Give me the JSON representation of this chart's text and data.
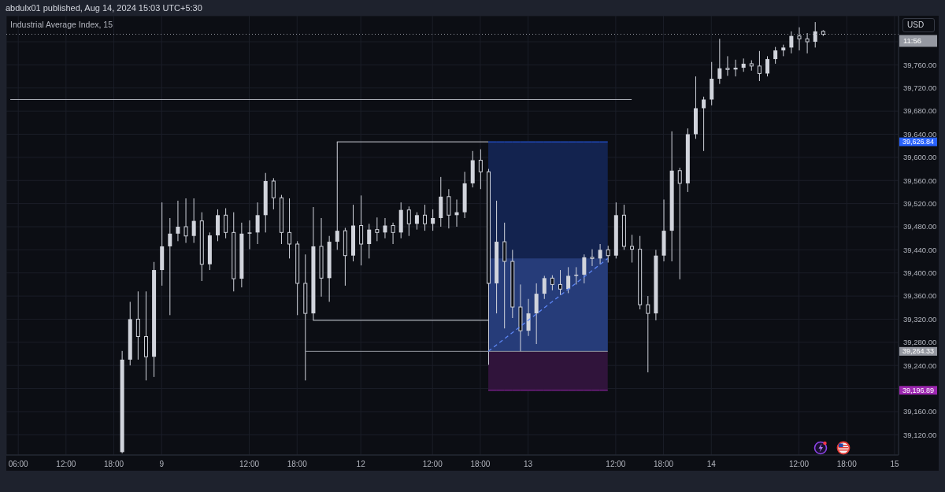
{
  "chart_data": {
    "type": "candlestick",
    "title": "Industrial Average Index, 15",
    "ylabel": "USD",
    "annotations": [
      "abdulx01 published, Aug 14, 2024 15:03 UTC+5:30",
      "11:56"
    ],
    "categories": [
      null,
      "06:00",
      null,
      null,
      null,
      null,
      null,
      "12:00",
      null,
      null,
      null,
      null,
      null,
      "18:00",
      null,
      null,
      null,
      null,
      null,
      "9",
      null,
      null,
      null,
      null,
      null,
      null,
      null,
      null,
      null,
      null,
      "12:00",
      null,
      null,
      null,
      null,
      null,
      "18:00",
      null,
      null,
      null,
      null,
      null,
      null,
      null,
      "12",
      null,
      null,
      null,
      null,
      null,
      null,
      null,
      null,
      "12:00",
      null,
      null,
      null,
      null,
      null,
      "18:00",
      null,
      null,
      null,
      null,
      null,
      "13",
      null,
      null,
      null,
      null,
      null,
      null,
      null,
      null,
      null,
      null,
      "12:00",
      null,
      null,
      null,
      null,
      null,
      "18:00",
      null,
      null,
      null,
      null,
      null,
      "14",
      null,
      null,
      null,
      null,
      null,
      null,
      null,
      null,
      null,
      null,
      "12:00",
      null,
      null,
      null,
      null,
      null,
      "18:00",
      null,
      null,
      null,
      null,
      null,
      "15"
    ],
    "color": "#d1d4dc",
    "ohlc": [
      null,
      null,
      null,
      null,
      null,
      null,
      null,
      null,
      null,
      null,
      null,
      null,
      null,
      null,
      [
        39090,
        39265,
        39088,
        39250
      ],
      [
        39250,
        39350,
        39240,
        39320
      ],
      [
        39320,
        39368,
        39250,
        39290
      ],
      [
        39290,
        39368,
        39214,
        39255
      ],
      [
        39255,
        39419,
        39220,
        39405
      ],
      [
        39405,
        39522,
        39378,
        39446
      ],
      [
        39446,
        39495,
        39327,
        39468
      ],
      [
        39468,
        39525,
        39455,
        39480
      ],
      [
        39480,
        39529,
        39452,
        39464
      ],
      [
        39464,
        39529,
        39452,
        39490
      ],
      [
        39490,
        39505,
        39386,
        39415
      ],
      [
        39415,
        39470,
        39405,
        39465
      ],
      [
        39465,
        39510,
        39455,
        39500
      ],
      [
        39500,
        39512,
        39460,
        39470
      ],
      [
        39470,
        39505,
        39368,
        39390
      ],
      [
        39390,
        39487,
        39375,
        39468
      ],
      [
        39468,
        39491,
        39441,
        39470
      ],
      [
        39470,
        39522,
        39450,
        39500
      ],
      [
        39500,
        39573,
        39470,
        39559
      ],
      [
        39559,
        39564,
        39510,
        39530
      ],
      [
        39530,
        39535,
        39450,
        39470
      ],
      [
        39470,
        39529,
        39425,
        39450
      ],
      [
        39450,
        39455,
        39327,
        39382
      ],
      [
        39382,
        39432,
        39214,
        39330
      ],
      [
        39330,
        39514,
        39318,
        39446
      ],
      [
        39446,
        39495,
        39359,
        39391
      ],
      [
        39391,
        39464,
        39350,
        39454
      ],
      [
        39454,
        39627,
        39440,
        39473
      ],
      [
        39473,
        39478,
        39378,
        39430
      ],
      [
        39430,
        39518,
        39420,
        39482
      ],
      [
        39482,
        39534,
        39413,
        39450
      ],
      [
        39450,
        39485,
        39425,
        39475
      ],
      [
        39475,
        39496,
        39455,
        39470
      ],
      [
        39470,
        39495,
        39460,
        39482
      ],
      [
        39482,
        39487,
        39450,
        39470
      ],
      [
        39470,
        39522,
        39460,
        39509
      ],
      [
        39509,
        39515,
        39464,
        39485
      ],
      [
        39485,
        39505,
        39475,
        39500
      ],
      [
        39500,
        39518,
        39473,
        39485
      ],
      [
        39485,
        39510,
        39473,
        39495
      ],
      [
        39495,
        39566,
        39480,
        39532
      ],
      [
        39532,
        39545,
        39477,
        39500
      ],
      [
        39500,
        39527,
        39480,
        39505
      ],
      [
        39505,
        39575,
        39495,
        39555
      ],
      [
        39555,
        39611,
        39548,
        39595
      ],
      [
        39595,
        39614,
        39545,
        39575
      ],
      [
        39575,
        39580,
        39241,
        39382
      ],
      [
        39382,
        39525,
        39330,
        39454
      ],
      [
        39454,
        39487,
        39304,
        39420
      ],
      [
        39420,
        39440,
        39322,
        39341
      ],
      [
        39341,
        39380,
        39264,
        39300
      ],
      [
        39300,
        39355,
        39291,
        39330
      ],
      [
        39330,
        39382,
        39277,
        39364
      ],
      [
        39364,
        39395,
        39355,
        39391
      ],
      [
        39391,
        39396,
        39370,
        39380
      ],
      [
        39380,
        39405,
        39362,
        39372
      ],
      [
        39372,
        39410,
        39365,
        39395
      ],
      [
        39395,
        39410,
        39380,
        39397
      ],
      [
        39397,
        39432,
        39382,
        39427
      ],
      [
        39427,
        39441,
        39412,
        39425
      ],
      [
        39425,
        39450,
        39415,
        39440
      ],
      [
        39440,
        39447,
        39418,
        39430
      ],
      [
        39430,
        39522,
        39425,
        39500
      ],
      [
        39500,
        39518,
        39440,
        39446
      ],
      [
        39446,
        39466,
        39418,
        39441
      ],
      [
        39441,
        39464,
        39337,
        39345
      ],
      [
        39345,
        39360,
        39228,
        39330
      ],
      [
        39330,
        39440,
        39318,
        39430
      ],
      [
        39430,
        39527,
        39420,
        39473
      ],
      [
        39473,
        39645,
        39420,
        39577
      ],
      [
        39577,
        39582,
        39389,
        39555
      ],
      [
        39555,
        39650,
        39540,
        39640
      ],
      [
        39640,
        39740,
        39632,
        39685
      ],
      [
        39685,
        39705,
        39611,
        39700
      ],
      [
        39700,
        39765,
        39690,
        39736
      ],
      [
        39736,
        39805,
        39727,
        39754
      ],
      [
        39754,
        39775,
        39741,
        39752
      ],
      [
        39752,
        39769,
        39740,
        39755
      ],
      [
        39755,
        39771,
        39748,
        39762
      ],
      [
        39762,
        39768,
        39750,
        39758
      ],
      [
        39758,
        39784,
        39732,
        39745
      ],
      [
        39745,
        39775,
        39740,
        39770
      ],
      [
        39770,
        39791,
        39762,
        39785
      ],
      [
        39785,
        39795,
        39775,
        39790
      ],
      [
        39790,
        39818,
        39780,
        39810
      ],
      [
        39810,
        39825,
        39785,
        39805
      ],
      [
        39805,
        39815,
        39780,
        39800
      ],
      [
        39800,
        39834,
        39790,
        39818
      ],
      [
        39818,
        39820,
        39810,
        39813
      ],
      null,
      null,
      null,
      null,
      null,
      null,
      null,
      null,
      null
    ],
    "series": [
      {
        "name": "39,626.84",
        "type": "line",
        "color": "#2962ff",
        "values": [
          null,
          null,
          null,
          null,
          null,
          null,
          null,
          null,
          null,
          null,
          null,
          null,
          null,
          null,
          null,
          null,
          null,
          null,
          null,
          null,
          null,
          null,
          null,
          null,
          null,
          null,
          null,
          null,
          null,
          null,
          null,
          null,
          null,
          null,
          null,
          null,
          null,
          null,
          null,
          null,
          null,
          null,
          null,
          null,
          null,
          null,
          null,
          null,
          null,
          null,
          null,
          null,
          null,
          null,
          null,
          null,
          null,
          null,
          null,
          null,
          39626.84,
          39626.84,
          39626.84,
          39626.84,
          39626.84,
          39626.84,
          39626.84,
          39626.84,
          39626.84,
          39626.84,
          39626.84,
          39626.84,
          39626.84,
          39626.84,
          39626.84,
          39626.84,
          null,
          null,
          null,
          null,
          null,
          null,
          null,
          null,
          null,
          null,
          null,
          null,
          null,
          null,
          null,
          null,
          null,
          null,
          null,
          null,
          null,
          null,
          null,
          null,
          null,
          null,
          null,
          null,
          null,
          null,
          null,
          null,
          null,
          null,
          null,
          null
        ],
        "lower": [
          null,
          null,
          null,
          null,
          null,
          null,
          null,
          null,
          null,
          null,
          null,
          null,
          null,
          null,
          null,
          null,
          null,
          null,
          null,
          null,
          null,
          null,
          null,
          null,
          null,
          null,
          null,
          null,
          null,
          null,
          null,
          null,
          null,
          null,
          null,
          null,
          null,
          null,
          null,
          null,
          null,
          null,
          null,
          null,
          null,
          null,
          null,
          null,
          null,
          null,
          null,
          null,
          null,
          null,
          null,
          null,
          null,
          null,
          null,
          null,
          39264.33,
          39264.33,
          39264.33,
          39264.33,
          39264.33,
          39264.33,
          39264.33,
          39264.33,
          39264.33,
          39264.33,
          39264.33,
          39264.33,
          39264.33,
          39264.33,
          39264.33,
          39264.33,
          null,
          null,
          null,
          null,
          null,
          null,
          null,
          null,
          null,
          null,
          null,
          null,
          null,
          null,
          null,
          null,
          null,
          null,
          null,
          null,
          null,
          null,
          null,
          null,
          null,
          null,
          null,
          null,
          null,
          null,
          null,
          null,
          null,
          null,
          null,
          null
        ],
        "upper": [
          null,
          null,
          null,
          null,
          null,
          null,
          null,
          null,
          null,
          null,
          null,
          null,
          null,
          null,
          null,
          null,
          null,
          null,
          null,
          null,
          null,
          null,
          null,
          null,
          null,
          null,
          null,
          null,
          null,
          null,
          null,
          null,
          null,
          null,
          null,
          null,
          null,
          null,
          null,
          null,
          null,
          null,
          null,
          null,
          null,
          null,
          null,
          null,
          null,
          null,
          null,
          null,
          null,
          null,
          null,
          null,
          null,
          null,
          null,
          null,
          39626.84,
          39626.84,
          39626.84,
          39626.84,
          39626.84,
          39626.84,
          39626.84,
          39626.84,
          39626.84,
          39626.84,
          39626.84,
          39626.84,
          39626.84,
          39626.84,
          39626.84,
          39626.84,
          null,
          null,
          null,
          null,
          null,
          null,
          null,
          null,
          null,
          null,
          null,
          null,
          null,
          null,
          null,
          null,
          null,
          null,
          null,
          null,
          null,
          null,
          null,
          null,
          null,
          null,
          null,
          null,
          null,
          null,
          null,
          null,
          null,
          null,
          null,
          null
        ]
      },
      {
        "name": "39,264.33",
        "type": "line",
        "color": "#9598a1",
        "values": [
          null,
          null,
          null,
          null,
          null,
          null,
          null,
          null,
          null,
          null,
          null,
          null,
          null,
          null,
          null,
          null,
          null,
          null,
          null,
          null,
          null,
          null,
          null,
          null,
          null,
          null,
          null,
          null,
          null,
          null,
          null,
          null,
          null,
          null,
          null,
          null,
          null,
          39264.33,
          null,
          null,
          null,
          null,
          null,
          null,
          null,
          null,
          null,
          null,
          null,
          null,
          null,
          null,
          null,
          null,
          null,
          null,
          null,
          null,
          null,
          null,
          null,
          null,
          null,
          null,
          null,
          null,
          null,
          null,
          null,
          null,
          null,
          null,
          null,
          null,
          null,
          39264.33,
          null,
          null,
          null,
          null,
          null,
          null,
          null,
          null,
          null,
          null,
          null,
          null,
          null,
          null,
          null,
          null,
          null,
          null,
          null,
          null,
          null,
          null,
          null,
          null,
          null,
          null,
          null,
          null,
          null,
          null,
          null,
          null,
          null,
          null,
          null,
          null
        ]
      },
      {
        "name": "39,196.89",
        "type": "line",
        "color": "#9c27b0",
        "values": [
          null,
          null,
          null,
          null,
          null,
          null,
          null,
          null,
          null,
          null,
          null,
          null,
          null,
          null,
          null,
          null,
          null,
          null,
          null,
          null,
          null,
          null,
          null,
          null,
          null,
          null,
          null,
          null,
          null,
          null,
          null,
          null,
          null,
          null,
          null,
          null,
          null,
          null,
          null,
          null,
          null,
          null,
          null,
          null,
          null,
          null,
          null,
          null,
          null,
          null,
          null,
          null,
          null,
          null,
          null,
          null,
          null,
          null,
          null,
          null,
          39196.89,
          39196.89,
          39196.89,
          39196.89,
          39196.89,
          39196.89,
          39196.89,
          39196.89,
          39196.89,
          39196.89,
          39196.89,
          39196.89,
          39196.89,
          39196.89,
          39196.89,
          39196.89,
          null,
          null,
          null,
          null,
          null,
          null,
          null,
          null,
          null,
          null,
          null,
          null,
          null,
          null,
          null,
          null,
          null,
          null,
          null,
          null,
          null,
          null,
          null,
          null,
          null,
          null,
          null,
          null,
          null,
          null,
          null,
          null,
          null,
          null,
          null,
          null
        ],
        "lower": [
          null,
          null,
          null,
          null,
          null,
          null,
          null,
          null,
          null,
          null,
          null,
          null,
          null,
          null,
          null,
          null,
          null,
          null,
          null,
          null,
          null,
          null,
          null,
          null,
          null,
          null,
          null,
          null,
          null,
          null,
          null,
          null,
          null,
          null,
          null,
          null,
          null,
          null,
          null,
          null,
          null,
          null,
          null,
          null,
          null,
          null,
          null,
          null,
          null,
          null,
          null,
          null,
          null,
          null,
          null,
          null,
          null,
          null,
          null,
          null,
          39196.89,
          39196.89,
          39196.89,
          39196.89,
          39196.89,
          39196.89,
          39196.89,
          39196.89,
          39196.89,
          39196.89,
          39196.89,
          39196.89,
          39196.89,
          39196.89,
          39196.89,
          39196.89,
          null,
          null,
          null,
          null,
          null,
          null,
          null,
          null,
          null,
          null,
          null,
          null,
          null,
          null,
          null,
          null,
          null,
          null,
          null,
          null,
          null,
          null,
          null,
          null,
          null,
          null,
          null,
          null,
          null,
          null,
          null,
          null,
          null,
          null,
          null,
          null
        ],
        "upper": [
          null,
          null,
          null,
          null,
          null,
          null,
          null,
          null,
          null,
          null,
          null,
          null,
          null,
          null,
          null,
          null,
          null,
          null,
          null,
          null,
          null,
          null,
          null,
          null,
          null,
          null,
          null,
          null,
          null,
          null,
          null,
          null,
          null,
          null,
          null,
          null,
          null,
          null,
          null,
          null,
          null,
          null,
          null,
          null,
          null,
          null,
          null,
          null,
          null,
          null,
          null,
          null,
          null,
          null,
          null,
          null,
          null,
          null,
          null,
          null,
          39264.33,
          39264.33,
          39264.33,
          39264.33,
          39264.33,
          39264.33,
          39264.33,
          39264.33,
          39264.33,
          39264.33,
          39264.33,
          39264.33,
          39264.33,
          39264.33,
          39264.33,
          39264.33,
          null,
          null,
          null,
          null,
          null,
          null,
          null,
          null,
          null,
          null,
          null,
          null,
          null,
          null,
          null,
          null,
          null,
          null,
          null,
          null,
          null,
          null,
          null,
          null,
          null,
          null,
          null,
          null,
          null,
          null,
          null,
          null,
          null,
          null,
          null,
          null
        ]
      },
      {
        "type": "line",
        "color": "#d1d4dc",
        "values": [
          null,
          null,
          null,
          null,
          null,
          null,
          null,
          null,
          null,
          null,
          null,
          null,
          null,
          null,
          null,
          null,
          null,
          null,
          null,
          null,
          null,
          null,
          null,
          null,
          null,
          null,
          null,
          null,
          null,
          null,
          null,
          null,
          null,
          null,
          null,
          null,
          null,
          null,
          null,
          null,
          null,
          39626.84,
          null,
          null,
          null,
          null,
          null,
          null,
          null,
          null,
          null,
          null,
          null,
          null,
          null,
          null,
          null,
          null,
          null,
          null,
          39626.84,
          null,
          null,
          null,
          null,
          null,
          null,
          null,
          null,
          null,
          null,
          null,
          null,
          null,
          null,
          null,
          null,
          null,
          null,
          null,
          null,
          null,
          null,
          null,
          null,
          null,
          null,
          null,
          null,
          null,
          null,
          null,
          null,
          null,
          null,
          null,
          null,
          null,
          null,
          null,
          null,
          null,
          null,
          null,
          null,
          null,
          null,
          null,
          null,
          null,
          null,
          null
        ]
      },
      {
        "type": "line",
        "color": "#b2b5be",
        "values": [
          39700,
          null,
          null,
          null,
          null,
          null,
          null,
          null,
          null,
          null,
          null,
          null,
          null,
          null,
          null,
          null,
          null,
          null,
          null,
          null,
          null,
          null,
          null,
          null,
          null,
          null,
          null,
          null,
          null,
          null,
          null,
          null,
          null,
          null,
          null,
          null,
          null,
          null,
          null,
          null,
          null,
          null,
          null,
          null,
          null,
          null,
          null,
          null,
          null,
          null,
          null,
          null,
          null,
          null,
          null,
          null,
          null,
          null,
          null,
          null,
          null,
          null,
          null,
          null,
          null,
          null,
          null,
          null,
          null,
          null,
          null,
          null,
          null,
          null,
          null,
          null,
          null,
          null,
          39700,
          null,
          null,
          null,
          null,
          null,
          null,
          null,
          null,
          null,
          null,
          null,
          null,
          null,
          null,
          null,
          null,
          null,
          null,
          null,
          null,
          null,
          null,
          null,
          null,
          null,
          null,
          null,
          null,
          null,
          null,
          null,
          null,
          null
        ]
      },
      {
        "type": "line",
        "color": "#d1d4dc",
        "values": [
          null,
          null,
          null,
          null,
          null,
          null,
          null,
          null,
          null,
          null,
          null,
          null,
          null,
          null,
          null,
          null,
          null,
          null,
          null,
          null,
          null,
          null,
          null,
          null,
          null,
          null,
          null,
          null,
          null,
          null,
          null,
          null,
          null,
          null,
          null,
          null,
          null,
          null,
          39318,
          null,
          null,
          null,
          null,
          null,
          null,
          null,
          null,
          null,
          null,
          null,
          null,
          null,
          null,
          null,
          null,
          null,
          null,
          null,
          null,
          null,
          39318,
          null,
          null,
          null,
          null,
          null,
          null,
          null,
          null,
          null,
          null,
          null,
          null,
          null,
          null,
          null,
          null,
          null,
          null,
          null,
          null,
          null,
          null,
          null,
          null,
          null,
          null,
          null,
          null,
          null,
          null,
          null,
          null,
          null,
          null,
          null,
          null,
          null,
          null,
          null,
          null,
          null,
          null,
          null,
          null,
          null,
          null,
          null,
          null,
          null,
          null,
          null
        ]
      },
      {
        "type": "line",
        "color": "#5d86f5",
        "line_style": "dashed",
        "values": [
          null,
          null,
          null,
          null,
          null,
          null,
          null,
          null,
          null,
          null,
          null,
          null,
          null,
          null,
          null,
          null,
          null,
          null,
          null,
          null,
          null,
          null,
          null,
          null,
          null,
          null,
          null,
          null,
          null,
          null,
          null,
          null,
          null,
          null,
          null,
          null,
          null,
          null,
          null,
          null,
          null,
          null,
          null,
          null,
          null,
          null,
          null,
          null,
          null,
          null,
          null,
          null,
          null,
          null,
          null,
          null,
          null,
          null,
          null,
          null,
          39264.33,
          null,
          null,
          null,
          null,
          null,
          null,
          null,
          null,
          null,
          null,
          null,
          null,
          null,
          null,
          39425,
          null,
          null,
          null,
          null,
          null,
          null,
          null,
          null,
          null,
          null,
          null,
          null,
          null,
          null,
          null,
          null,
          null,
          null,
          null,
          null,
          null,
          null,
          null,
          null,
          null,
          null,
          null,
          null,
          null,
          null,
          null,
          null,
          null,
          null,
          null,
          null
        ],
        "lower": [
          null,
          null,
          null,
          null,
          null,
          null,
          null,
          null,
          null,
          null,
          null,
          null,
          null,
          null,
          null,
          null,
          null,
          null,
          null,
          null,
          null,
          null,
          null,
          null,
          null,
          null,
          null,
          null,
          null,
          null,
          null,
          null,
          null,
          null,
          null,
          null,
          null,
          null,
          null,
          null,
          null,
          null,
          null,
          null,
          null,
          null,
          null,
          null,
          null,
          null,
          null,
          null,
          null,
          null,
          null,
          null,
          null,
          null,
          null,
          null,
          39264.33,
          39264.33,
          39264.33,
          39264.33,
          39264.33,
          39264.33,
          39264.33,
          39264.33,
          39264.33,
          39264.33,
          39264.33,
          39264.33,
          39264.33,
          39264.33,
          39264.33,
          39264.33,
          null,
          null,
          null,
          null,
          null,
          null,
          null,
          null,
          null,
          null,
          null,
          null,
          null,
          null,
          null,
          null,
          null,
          null,
          null,
          null,
          null,
          null,
          null,
          null,
          null,
          null,
          null,
          null,
          null,
          null,
          null,
          null,
          null,
          null,
          null,
          null
        ],
        "upper": [
          null,
          null,
          null,
          null,
          null,
          null,
          null,
          null,
          null,
          null,
          null,
          null,
          null,
          null,
          null,
          null,
          null,
          null,
          null,
          null,
          null,
          null,
          null,
          null,
          null,
          null,
          null,
          null,
          null,
          null,
          null,
          null,
          null,
          null,
          null,
          null,
          null,
          null,
          null,
          null,
          null,
          null,
          null,
          null,
          null,
          null,
          null,
          null,
          null,
          null,
          null,
          null,
          null,
          null,
          null,
          null,
          null,
          null,
          null,
          null,
          39425,
          39425,
          39425,
          39425,
          39425,
          39425,
          39425,
          39425,
          39425,
          39425,
          39425,
          39425,
          39425,
          39425,
          39425,
          39425,
          null,
          null,
          null,
          null,
          null,
          null,
          null,
          null,
          null,
          null,
          null,
          null,
          null,
          null,
          null,
          null,
          null,
          null,
          null,
          null,
          null,
          null,
          null,
          null,
          null,
          null,
          null,
          null,
          null,
          null,
          null,
          null,
          null,
          null,
          null,
          null
        ]
      }
    ],
    "ylim": [
      39085,
      39845
    ],
    "yticks": [
      {
        "value": 39120,
        "label": "39,120.00"
      },
      {
        "value": 39160,
        "label": "39,160.00"
      },
      {
        "value": 39200,
        "label": null
      },
      {
        "value": 39240,
        "label": "39,240.00"
      },
      {
        "value": 39280,
        "label": "39,280.00"
      },
      {
        "value": 39320,
        "label": "39,320.00"
      },
      {
        "value": 39360,
        "label": "39,360.00"
      },
      {
        "value": 39400,
        "label": "39,400.00"
      },
      {
        "value": 39440,
        "label": "39,440.00"
      },
      {
        "value": 39480,
        "label": "39,480.00"
      },
      {
        "value": 39520,
        "label": "39,520.00"
      },
      {
        "value": 39560,
        "label": "39,560.00"
      },
      {
        "value": 39600,
        "label": "39,600.00"
      },
      {
        "value": 39640,
        "label": "39,640.00"
      },
      {
        "value": 39680,
        "label": "39,680.00"
      },
      {
        "value": 39720,
        "label": "39,720.00"
      },
      {
        "value": 39760,
        "label": "39,760.00"
      },
      {
        "value": 39800,
        "label": null
      }
    ],
    "grid": true,
    "ref_lines": [
      {
        "axis": "y",
        "value": 39813,
        "color": "#9598a1",
        "line_style": "dotted"
      }
    ]
  }
}
